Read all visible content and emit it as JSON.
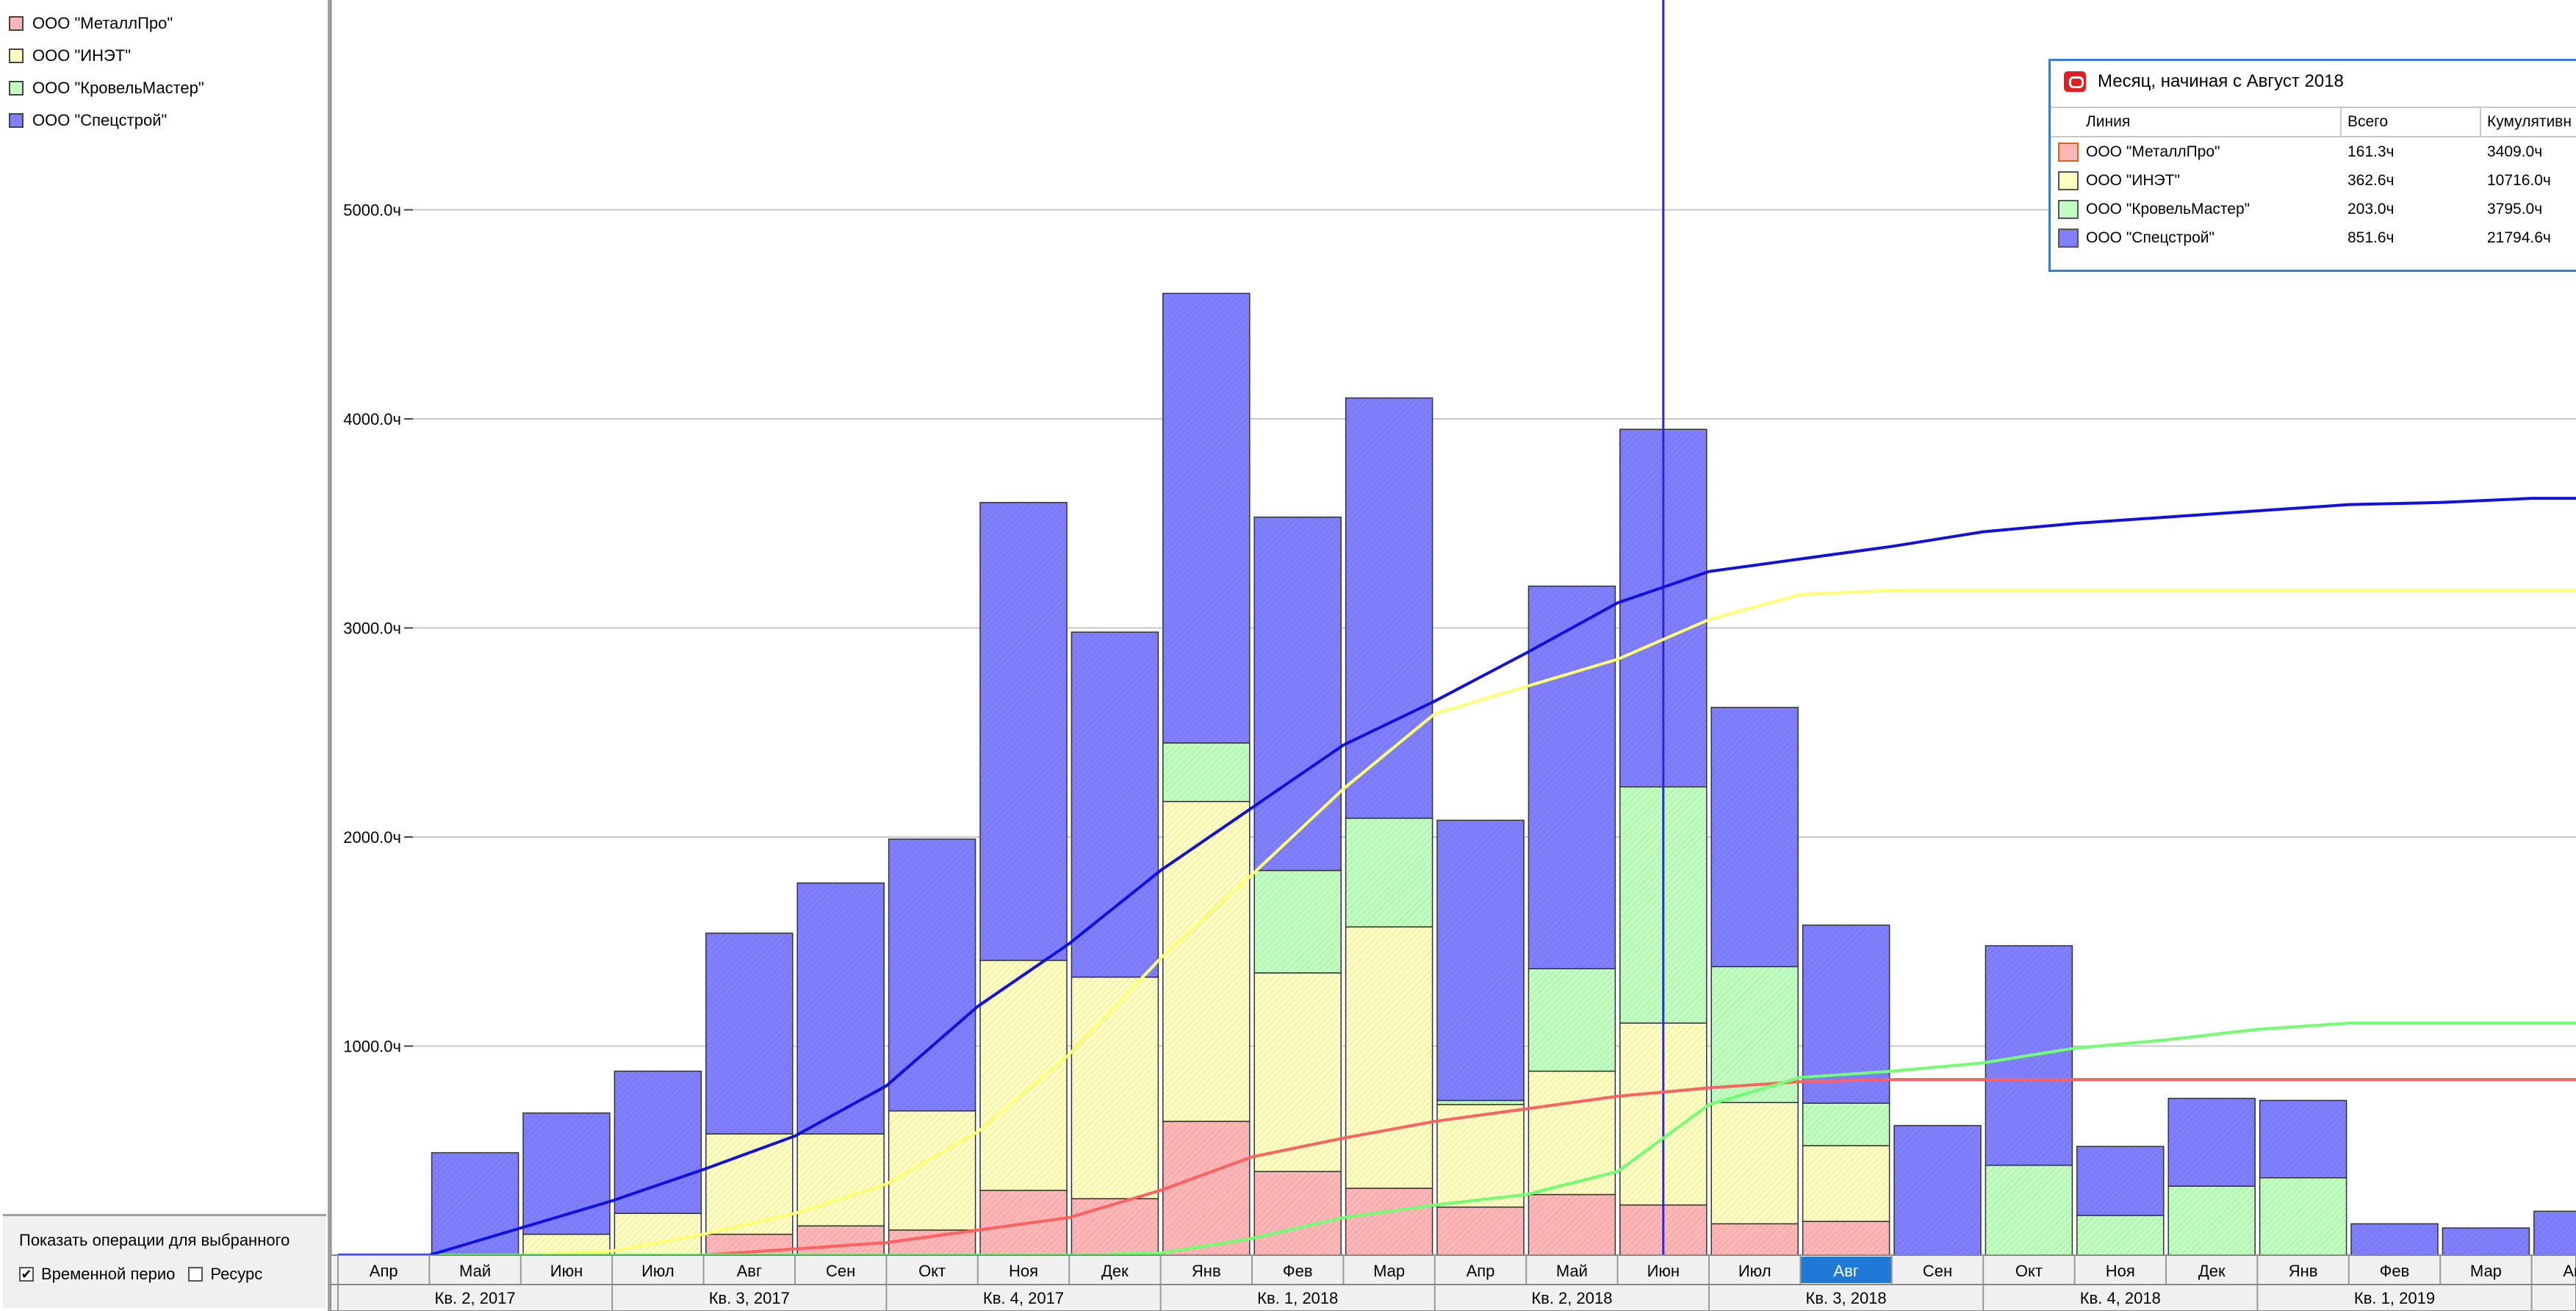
{
  "legend": {
    "items": [
      {
        "label": "ООО \"МеталлПро\"",
        "color": "#ffb6b6"
      },
      {
        "label": "ООО \"ИНЭТ\"",
        "color": "#ffffc0"
      },
      {
        "label": "ООО \"КровельМастер\"",
        "color": "#c0ffc0"
      },
      {
        "label": "ООО \"Спецстрой\"",
        "color": "#8080ff"
      }
    ]
  },
  "options": {
    "title": "Показать операции для выбранного",
    "time_period_label": "Временной перио",
    "time_period_checked": "✔",
    "resource_label": "Ресурс"
  },
  "tooltip": {
    "title": "Месяц, начиная с Август 2018",
    "headers": {
      "line": "Линия",
      "total": "Всего",
      "cumulative": "Кумулятивн"
    },
    "rows": [
      {
        "name": "ООО \"МеталлПро\"",
        "total": "161.3ч",
        "cumulative": "3409.0ч",
        "color": "#ffb6b6"
      },
      {
        "name": "ООО \"ИНЭТ\"",
        "total": "362.6ч",
        "cumulative": "10716.0ч",
        "color": "#ffffc0"
      },
      {
        "name": "ООО \"КровельМастер\"",
        "total": "203.0ч",
        "cumulative": "3795.0ч",
        "color": "#c0ffc0"
      },
      {
        "name": "ООО \"Спецстрой\"",
        "total": "851.6ч",
        "cumulative": "21794.6ч",
        "color": "#8080ff"
      }
    ]
  },
  "chart_data": {
    "type": "bar",
    "stacked": true,
    "y_unit_suffix": "ч",
    "ylim": [
      0,
      6000
    ],
    "yticks": [
      1000,
      2000,
      3000,
      4000,
      5000
    ],
    "ytick_labels": [
      "1000.0ч",
      "2000.0ч",
      "3000.0ч",
      "4000.0ч",
      "5000.0ч"
    ],
    "grid": true,
    "categories": [
      "Апр",
      "Май",
      "Июн",
      "Июл",
      "Авг",
      "Сен",
      "Окт",
      "Ноя",
      "Дек",
      "Янв",
      "Фев",
      "Мар",
      "Апр",
      "Май",
      "Июн",
      "Июл",
      "Авг",
      "Сен",
      "Окт",
      "Ноя",
      "Дек",
      "Янв",
      "Фев",
      "Мар",
      "Апр"
    ],
    "selected_category_index": 16,
    "marker_category_index": 14,
    "quarters": [
      {
        "label": "Кв. 2, 2017",
        "months": 3
      },
      {
        "label": "Кв. 3, 2017",
        "months": 3
      },
      {
        "label": "Кв. 4, 2017",
        "months": 3
      },
      {
        "label": "Кв. 1, 2018",
        "months": 3
      },
      {
        "label": "Кв. 2, 2018",
        "months": 3
      },
      {
        "label": "Кв. 3, 2018",
        "months": 3
      },
      {
        "label": "Кв. 4, 2018",
        "months": 3
      },
      {
        "label": "Кв. 1, 2019",
        "months": 3
      },
      {
        "label": "",
        "months": 1
      }
    ],
    "series": [
      {
        "name": "ООО \"МеталлПро\"",
        "color": "#ffb6b6",
        "line_color": "#ff6060",
        "values": [
          0,
          0,
          0,
          0,
          100,
          140,
          120,
          310,
          270,
          640,
          400,
          320,
          230,
          290,
          240,
          150,
          161.3,
          0,
          0,
          0,
          0,
          0,
          0,
          0,
          0
        ],
        "cumulative": [
          0,
          0,
          0,
          0,
          0,
          30,
          60,
          120,
          180,
          310,
          470,
          560,
          640,
          700,
          760,
          800,
          830,
          840,
          840,
          840,
          840,
          840,
          840,
          840,
          840
        ]
      },
      {
        "name": "ООО \"ИНЭТ\"",
        "color": "#ffffc0",
        "line_color": "#ffff70",
        "values": [
          0,
          0,
          100,
          200,
          480,
          440,
          570,
          1100,
          1060,
          1530,
          950,
          1250,
          490,
          590,
          870,
          580,
          362.6,
          0,
          0,
          0,
          0,
          0,
          0,
          0,
          0
        ],
        "cumulative": [
          0,
          0,
          0,
          20,
          100,
          200,
          340,
          590,
          960,
          1420,
          1820,
          2230,
          2590,
          2720,
          2850,
          3040,
          3160,
          3180,
          3180,
          3180,
          3180,
          3180,
          3180,
          3180,
          3180
        ]
      },
      {
        "name": "ООО \"КровельМастер\"",
        "color": "#c0ffc0",
        "line_color": "#70ff70",
        "values": [
          0,
          0,
          0,
          0,
          0,
          0,
          0,
          0,
          0,
          280,
          490,
          520,
          20,
          490,
          1130,
          650,
          203.0,
          0,
          430,
          190,
          330,
          370,
          0,
          0,
          0
        ],
        "cumulative": [
          0,
          0,
          0,
          0,
          0,
          0,
          0,
          0,
          0,
          10,
          80,
          180,
          240,
          290,
          400,
          720,
          850,
          880,
          920,
          990,
          1030,
          1080,
          1110,
          1110,
          1110
        ]
      },
      {
        "name": "ООО \"Спецстрой\"",
        "color": "#8080ff",
        "line_color": "#1010e0",
        "values": [
          0,
          490,
          580,
          680,
          960,
          1200,
          1300,
          2190,
          1650,
          2150,
          1690,
          2010,
          1340,
          1830,
          1710,
          1240,
          851.6,
          620,
          1050,
          330,
          420,
          370,
          150,
          130,
          210
        ],
        "cumulative": [
          0,
          0,
          130,
          260,
          410,
          570,
          810,
          1190,
          1490,
          1840,
          2140,
          2440,
          2650,
          2880,
          3120,
          3270,
          3330,
          3390,
          3460,
          3500,
          3530,
          3560,
          3590,
          3600,
          3620
        ]
      }
    ]
  }
}
